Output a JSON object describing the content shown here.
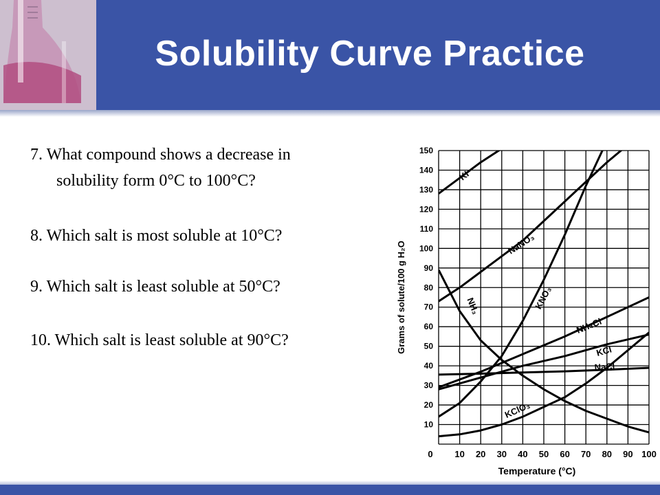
{
  "slide": {
    "title": "Solubility Curve Practice",
    "questions": [
      "7. What compound shows a decrease in",
      "solubility form 0°C to 100°C?",
      "8. Which salt is most soluble at 10°C?",
      "9. Which salt is least soluble at 50°C?",
      "10. Which salt is least soluble at 90°C?"
    ],
    "colors": {
      "header": "#3a54a6",
      "title_text": "#ffffff"
    }
  },
  "chart_data": {
    "type": "line",
    "xlabel": "Temperature (°C)",
    "ylabel": "Grams of solute/100 g H₂O",
    "xlim": [
      0,
      100
    ],
    "ylim": [
      0,
      150
    ],
    "x_ticks": [
      "0",
      "10",
      "20",
      "30",
      "40",
      "50",
      "60",
      "70",
      "80",
      "90",
      "100"
    ],
    "y_ticks": [
      "10",
      "20",
      "30",
      "40",
      "50",
      "60",
      "70",
      "80",
      "90",
      "100",
      "110",
      "120",
      "130",
      "140",
      "150"
    ],
    "grid": true,
    "series": [
      {
        "name": "KI",
        "x": [
          0,
          10,
          20,
          30
        ],
        "y": [
          128,
          136,
          144,
          151
        ]
      },
      {
        "name": "NaNO₃",
        "x": [
          0,
          10,
          20,
          30,
          40,
          50,
          60,
          70,
          80,
          90
        ],
        "y": [
          73,
          80,
          88,
          96,
          104,
          114,
          124,
          134,
          144,
          153
        ]
      },
      {
        "name": "KNO₃",
        "x": [
          0,
          10,
          20,
          30,
          40,
          50,
          60,
          70,
          80
        ],
        "y": [
          14,
          21,
          32,
          45,
          63,
          84,
          107,
          132,
          155
        ]
      },
      {
        "name": "NH₄Cl",
        "x": [
          0,
          20,
          40,
          60,
          80,
          100
        ],
        "y": [
          29,
          37,
          46,
          55,
          65,
          75
        ]
      },
      {
        "name": "KCl",
        "x": [
          0,
          20,
          40,
          60,
          80,
          100
        ],
        "y": [
          28,
          34,
          40,
          45,
          51,
          56
        ]
      },
      {
        "name": "NaCl",
        "x": [
          0,
          20,
          40,
          60,
          80,
          100
        ],
        "y": [
          35.5,
          36,
          36.6,
          37.2,
          38,
          39
        ]
      },
      {
        "name": "KClO₃",
        "x": [
          0,
          10,
          20,
          30,
          40,
          50,
          60,
          70,
          80,
          90,
          100
        ],
        "y": [
          4,
          5,
          7,
          10,
          14,
          19,
          24,
          31,
          39,
          48,
          57
        ]
      },
      {
        "name": "NH₃",
        "x": [
          0,
          10,
          20,
          30,
          40,
          50,
          60,
          70,
          80,
          90,
          100
        ],
        "y": [
          89,
          68,
          53,
          43,
          35,
          28,
          22,
          17,
          13,
          9,
          6
        ]
      }
    ],
    "series_labels": [
      "KI",
      "NaNO₃",
      "KNO₃",
      "NH₄Cl",
      "KCl",
      "NaCl",
      "KClO₃",
      "NH₃"
    ]
  }
}
